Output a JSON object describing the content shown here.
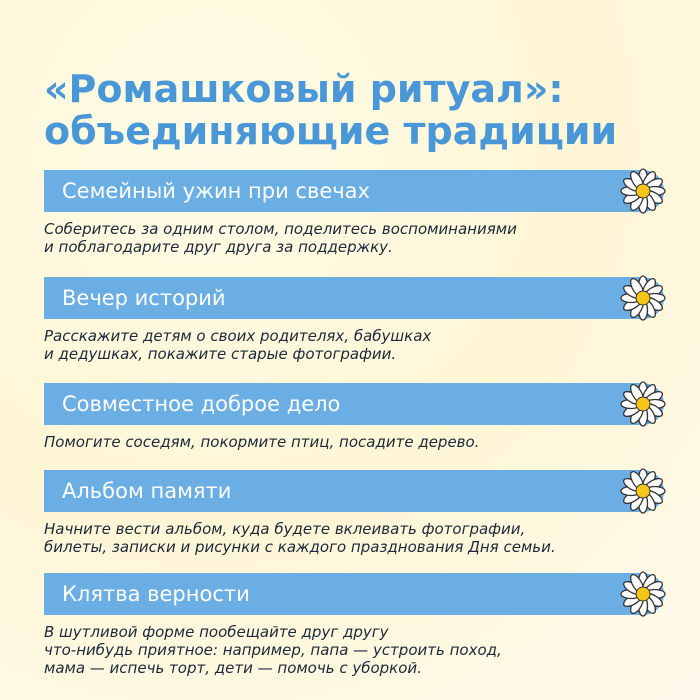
{
  "header": {
    "title_line1": "«Ромашковый ритуал»:",
    "title_line2": "объединяющие традиции"
  },
  "items": [
    {
      "title": "Семейный ужин при свечах",
      "text": [
        "Соберитесь за одним столом, поделитесь воспоминаниями",
        "и поблагодарите друг друга за поддержку."
      ]
    },
    {
      "title": "Вечер историй",
      "text": [
        "Расскажите детям о своих родителях, бабушках",
        "и дедушках, покажите старые фотографии."
      ]
    },
    {
      "title": "Совместное доброе дело",
      "text": [
        "Помогите соседям, покормите птиц, посадите дерево."
      ]
    },
    {
      "title": "Альбом памяти",
      "text": [
        "Начните вести альбом, куда будете вклеивать фотографии,",
        "билеты, записки и рисунки с каждого празднования Дня семьи."
      ]
    },
    {
      "title": "Клятва верности",
      "text": [
        "В шутливой форме пообещайте друг другу",
        "что-нибудь приятное: например, папа — устроить поход,",
        "мама — испечь торт, дети — помочь с уборкой."
      ]
    }
  ]
}
